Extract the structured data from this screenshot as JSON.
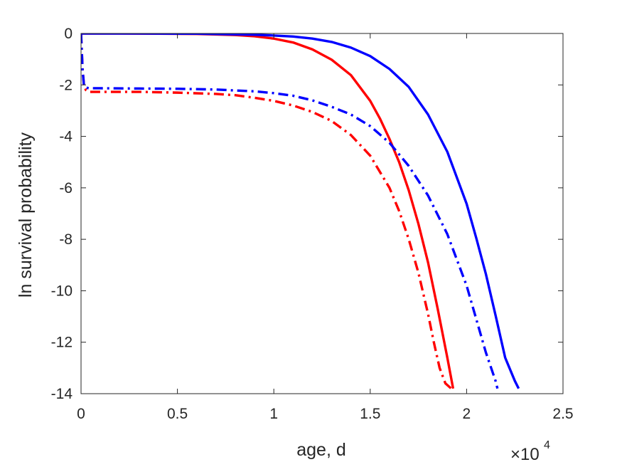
{
  "chart_data": {
    "type": "line",
    "xlabel": "age, d",
    "ylabel": "ln survival probability",
    "x_exponent_label": "×10",
    "x_exponent_power": "4",
    "x_multiplier": 10000,
    "xlim": [
      0,
      25000
    ],
    "ylim": [
      -14,
      0
    ],
    "xticks": [
      0,
      5000,
      10000,
      15000,
      20000,
      25000
    ],
    "xtick_labels": [
      "0",
      "0.5",
      "1",
      "1.5",
      "2",
      "2.5"
    ],
    "yticks": [
      0,
      -2,
      -4,
      -6,
      -8,
      -10,
      -12,
      -14
    ],
    "ytick_labels": [
      "0",
      "-2",
      "-4",
      "-6",
      "-8",
      "-10",
      "-12",
      "-14"
    ],
    "grid": false,
    "colors": {
      "blue": "#0000ff",
      "red": "#ff0000",
      "axis": "#262626"
    },
    "series": [
      {
        "color": "#ff0000",
        "style": "solid",
        "x": [
          0,
          2000,
          4000,
          6000,
          8000,
          9000,
          10000,
          11000,
          12000,
          13000,
          14000,
          15000,
          15500,
          16000,
          16500,
          17000,
          17500,
          18000,
          18500,
          19000,
          19300
        ],
        "y": [
          0,
          0,
          -0.01,
          -0.02,
          -0.06,
          -0.11,
          -0.2,
          -0.35,
          -0.62,
          -1.02,
          -1.62,
          -2.62,
          -3.3,
          -4.1,
          -5.0,
          -6.1,
          -7.4,
          -8.9,
          -10.7,
          -12.6,
          -13.8
        ]
      },
      {
        "color": "#0000ff",
        "style": "solid",
        "x": [
          0,
          3000,
          6000,
          9000,
          10000,
          11000,
          12000,
          13000,
          14000,
          15000,
          16000,
          17000,
          18000,
          19000,
          20000,
          20500,
          21000,
          21500,
          22000,
          22500,
          22700
        ],
        "y": [
          0,
          0,
          -0.01,
          -0.05,
          -0.08,
          -0.12,
          -0.2,
          -0.33,
          -0.55,
          -0.88,
          -1.38,
          -2.08,
          -3.15,
          -4.6,
          -6.62,
          -7.95,
          -9.35,
          -10.95,
          -12.6,
          -13.5,
          -13.8
        ]
      },
      {
        "color": "#ff0000",
        "style": "dashdot",
        "x": [
          0,
          80,
          150,
          250,
          400,
          1000,
          3000,
          5000,
          7000,
          8000,
          9000,
          10000,
          11000,
          12000,
          13000,
          14000,
          15000,
          16000,
          16500,
          17000,
          17500,
          18000,
          18300,
          18600,
          18900,
          19200
        ],
        "y": [
          0,
          -1.4,
          -2.0,
          -2.2,
          -2.27,
          -2.27,
          -2.27,
          -2.3,
          -2.35,
          -2.4,
          -2.5,
          -2.62,
          -2.8,
          -3.05,
          -3.4,
          -3.95,
          -4.75,
          -6.0,
          -6.9,
          -8.0,
          -9.3,
          -10.9,
          -12.0,
          -13.0,
          -13.6,
          -13.8
        ]
      },
      {
        "color": "#0000ff",
        "style": "dashdot",
        "x": [
          0,
          80,
          150,
          250,
          400,
          1000,
          3000,
          5000,
          7000,
          9000,
          10000,
          11000,
          12000,
          13000,
          14000,
          15000,
          16000,
          17000,
          18000,
          19000,
          20000,
          20500,
          21000,
          21500,
          21600
        ],
        "y": [
          0,
          -1.4,
          -2.0,
          -2.1,
          -2.13,
          -2.13,
          -2.14,
          -2.15,
          -2.18,
          -2.25,
          -2.32,
          -2.42,
          -2.6,
          -2.85,
          -3.15,
          -3.6,
          -4.25,
          -5.15,
          -6.3,
          -7.8,
          -9.8,
          -11.1,
          -12.4,
          -13.5,
          -13.8
        ]
      }
    ]
  }
}
